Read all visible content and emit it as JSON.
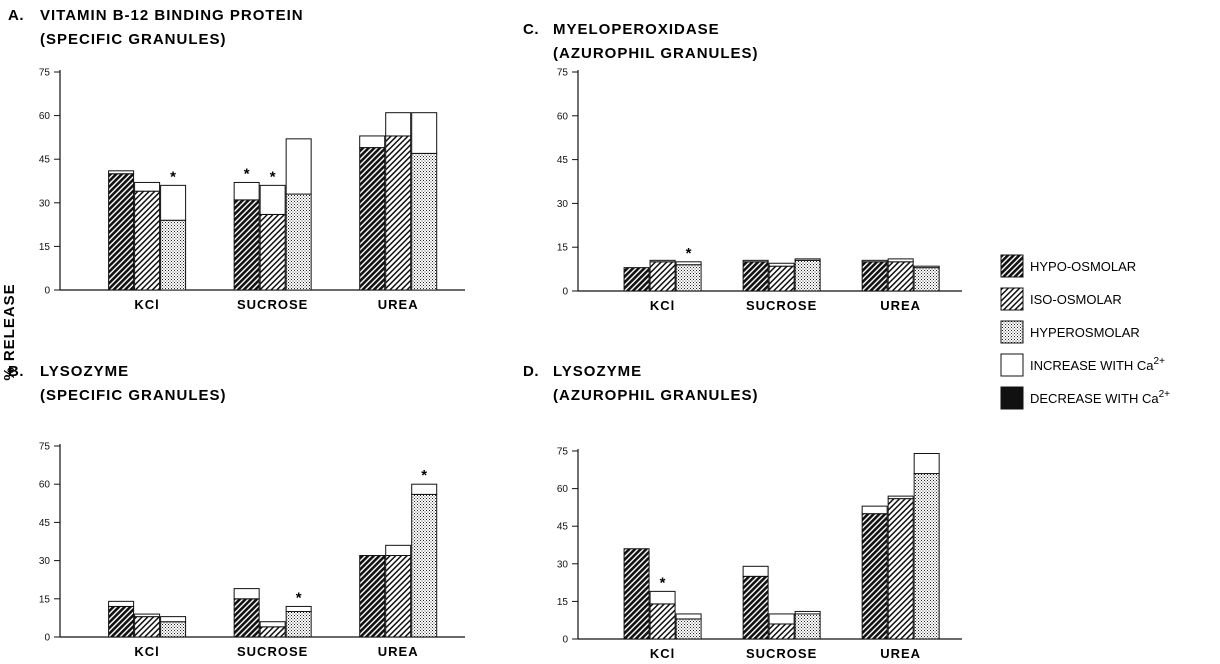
{
  "chart_data": {
    "type": "bar",
    "stacked": true,
    "ylabel": "% RELEASE",
    "ylim": [
      0,
      75
    ],
    "yticks": [
      "0",
      "15",
      "30",
      "45",
      "60",
      "75"
    ],
    "categories": [
      "KCl",
      "SUCROSE",
      "UREA"
    ],
    "osmolarities": [
      "HYPO-OSMOLAR",
      "ISO-OSMOLAR",
      "HYPEROSMOLAR"
    ],
    "legend": [
      {
        "key": "hypo",
        "label": "HYPO-OSMOLAR"
      },
      {
        "key": "iso",
        "label": "ISO-OSMOLAR"
      },
      {
        "key": "hyper",
        "label": "HYPEROSMOLAR"
      },
      {
        "key": "increase",
        "label": "INCREASE WITH Ca",
        "sup": "2+"
      },
      {
        "key": "decrease",
        "label": "DECREASE WITH Ca",
        "sup": "2+"
      }
    ],
    "panels": [
      {
        "letter": "A.",
        "title1": "VITAMIN B-12 BINDING PROTEIN",
        "title2": "(SPECIFIC GRANULES)",
        "bars": [
          [
            {
              "base": 40,
              "ca": 41,
              "star": false
            },
            {
              "base": 34,
              "ca": 37,
              "star": false
            },
            {
              "base": 24,
              "ca": 36,
              "star": true
            }
          ],
          [
            {
              "base": 31,
              "ca": 37,
              "star": true
            },
            {
              "base": 26,
              "ca": 36,
              "star": true
            },
            {
              "base": 33,
              "ca": 52,
              "star": false
            }
          ],
          [
            {
              "base": 49,
              "ca": 53,
              "star": false
            },
            {
              "base": 53,
              "ca": 61,
              "star": false
            },
            {
              "base": 47,
              "ca": 61,
              "star": false
            }
          ]
        ]
      },
      {
        "letter": "B.",
        "title1": "LYSOZYME",
        "title2": "(SPECIFIC GRANULES)",
        "bars": [
          [
            {
              "base": 12,
              "ca": 14,
              "star": false
            },
            {
              "base": 8,
              "ca": 9,
              "star": false
            },
            {
              "base": 6,
              "ca": 8,
              "star": false
            }
          ],
          [
            {
              "base": 15,
              "ca": 19,
              "star": false
            },
            {
              "base": 4,
              "ca": 6,
              "star": false
            },
            {
              "base": 10,
              "ca": 12,
              "star": true
            }
          ],
          [
            {
              "base": 32,
              "ca": 32,
              "star": false
            },
            {
              "base": 32,
              "ca": 36,
              "star": false
            },
            {
              "base": 56,
              "ca": 60,
              "star": true
            }
          ]
        ]
      },
      {
        "letter": "C.",
        "title1": "MYELOPEROXIDASE",
        "title2": "(AZUROPHIL GRANULES)",
        "bars": [
          [
            {
              "base": 8,
              "ca": 8,
              "star": false
            },
            {
              "base": 10,
              "ca": 10.5,
              "star": false
            },
            {
              "base": 9,
              "ca": 10,
              "star": true
            }
          ],
          [
            {
              "base": 10,
              "ca": 10.5,
              "star": false
            },
            {
              "base": 8.5,
              "ca": 9.5,
              "star": false
            },
            {
              "base": 10.5,
              "ca": 11,
              "star": false
            }
          ],
          [
            {
              "base": 10,
              "ca": 10.5,
              "star": false
            },
            {
              "base": 10,
              "ca": 11,
              "star": false
            },
            {
              "base": 8,
              "ca": 8.5,
              "star": false
            }
          ]
        ]
      },
      {
        "letter": "D.",
        "title1": "LYSOZYME",
        "title2": "(AZUROPHIL GRANULES)",
        "bars": [
          [
            {
              "base": 36,
              "ca": 36,
              "star": false
            },
            {
              "base": 14,
              "ca": 19,
              "star": true
            },
            {
              "base": 8,
              "ca": 10,
              "star": false
            }
          ],
          [
            {
              "base": 25,
              "ca": 29,
              "star": false
            },
            {
              "base": 6,
              "ca": 10,
              "star": false
            },
            {
              "base": 10,
              "ca": 11,
              "star": false
            }
          ],
          [
            {
              "base": 50,
              "ca": 53,
              "star": false
            },
            {
              "base": 56,
              "ca": 57,
              "star": false
            },
            {
              "base": 66,
              "ca": 74,
              "star": false
            }
          ]
        ]
      }
    ]
  }
}
